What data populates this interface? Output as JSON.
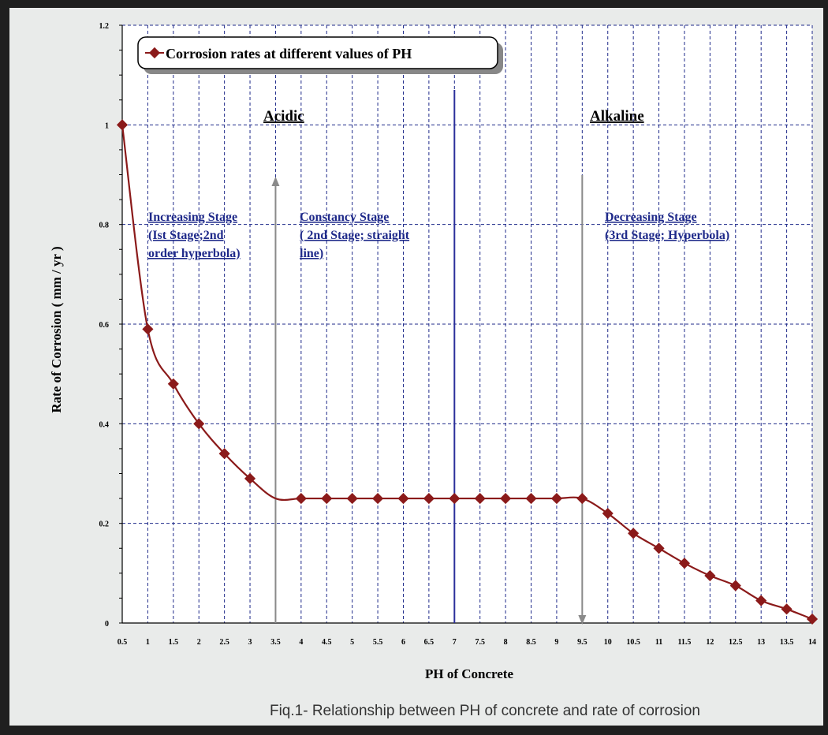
{
  "chart_data": {
    "type": "line",
    "x": [
      0.5,
      1,
      1.5,
      2,
      2.5,
      3,
      3.5,
      4,
      4.5,
      5,
      5.5,
      6,
      6.5,
      7,
      7.5,
      8,
      8.5,
      9,
      9.5,
      10,
      10.5,
      11,
      11.5,
      12,
      12.5,
      13,
      13.5,
      14
    ],
    "series": [
      {
        "name": "Corrosion rates at different values of PH",
        "values": [
          1.0,
          0.59,
          0.48,
          0.4,
          0.34,
          0.29,
          0.25,
          0.25,
          0.25,
          0.25,
          0.25,
          0.25,
          0.25,
          0.25,
          0.25,
          0.25,
          0.25,
          0.25,
          0.25,
          0.22,
          0.18,
          0.15,
          0.12,
          0.095,
          0.075,
          0.045,
          0.028,
          0.008
        ],
        "marker_indices": [
          0,
          1,
          2,
          3,
          4,
          5,
          7,
          8,
          9,
          10,
          11,
          12,
          13,
          14,
          15,
          16,
          17,
          18,
          19,
          20,
          21,
          22,
          23,
          24,
          25,
          26,
          27
        ],
        "color": "#8b1a1a"
      }
    ],
    "x_tick_labels": [
      "0.5",
      "1",
      "1.5",
      "2",
      "2.5",
      "3",
      "3.5",
      "4",
      "4.5",
      "5",
      "5.5",
      "6",
      "6.5",
      "7",
      "7.5",
      "8",
      "8.5",
      "9",
      "9.5",
      "10",
      "10.5",
      "11",
      "11.5",
      "12",
      "12.5",
      "13",
      "13.5",
      "14"
    ],
    "y_ticks": [
      0,
      0.2,
      0.4,
      0.6,
      0.8,
      1,
      1.2
    ],
    "y_tick_labels": [
      "0",
      "0.2",
      "0.4",
      "0.6",
      "0.8",
      "1",
      "1.2"
    ],
    "ylim": [
      0,
      1.2
    ],
    "xlim": [
      0.5,
      14
    ],
    "xlabel": "PH of Concrete",
    "ylabel": "Rate of Corrosion ( mm / yr )",
    "grid": true,
    "legend_position": "top-left",
    "colors": {
      "line": "#8b1a1a",
      "grid": "#1f2a8a",
      "divider": "#2b2f9a",
      "arrow": "#8a8a8a",
      "plot_bg": "#ffffff",
      "stage_text": "#1f2a8a"
    },
    "annotations": {
      "acidic": "Acidic",
      "alkaline": "Alkaline",
      "stage1": [
        "Increasing Stage",
        "(Ist Stage;2nd",
        "order hyperbola)"
      ],
      "stage2": [
        "Constancy Stage",
        "( 2nd Stage; straight",
        "line)"
      ],
      "stage3": [
        "Decreasing Stage",
        "(3rd Stage; Hyperbola)"
      ]
    },
    "divider_x": 7,
    "arrow_up_x": 3.5,
    "arrow_down_x": 9.5
  },
  "caption": "Fiq.1- Relationship between PH of concrete and rate of corrosion"
}
